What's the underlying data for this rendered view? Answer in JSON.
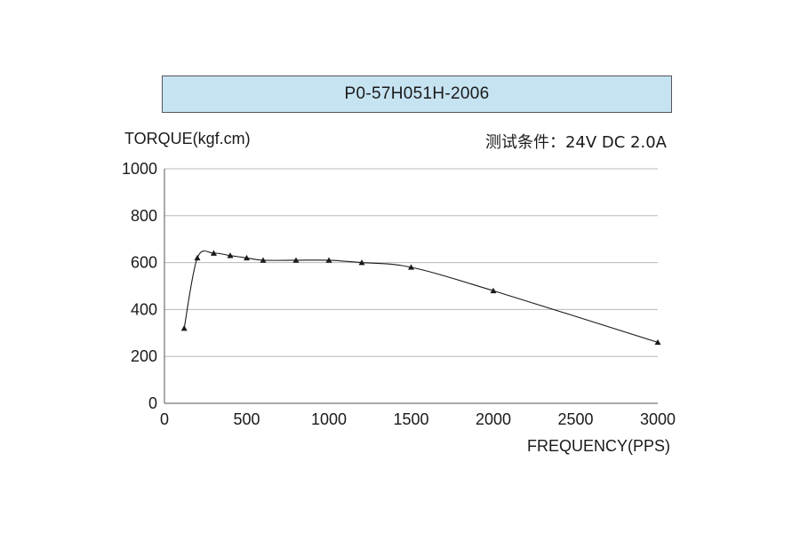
{
  "header": {
    "model": "P0-57H051H-2006"
  },
  "conditions": "测试条件：24V DC  2.0A",
  "chart_data": {
    "type": "line",
    "title": "P0-57H051H-2006",
    "xlabel": "FREQUENCY(PPS)",
    "ylabel": "TORQUE(kgf.cm)",
    "xlim": [
      0,
      3000
    ],
    "ylim": [
      0,
      1000
    ],
    "xticks": [
      0,
      500,
      1000,
      1500,
      2000,
      2500,
      3000
    ],
    "yticks": [
      0,
      200,
      400,
      600,
      800,
      1000
    ],
    "grid": "horizontal",
    "series": [
      {
        "marker": "triangle",
        "color": "#1a1a1a",
        "x": [
          120,
          200,
          300,
          400,
          500,
          600,
          800,
          1000,
          1200,
          1500,
          2000,
          3000
        ],
        "y": [
          320,
          620,
          640,
          630,
          620,
          610,
          610,
          610,
          600,
          580,
          480,
          260
        ]
      }
    ]
  }
}
